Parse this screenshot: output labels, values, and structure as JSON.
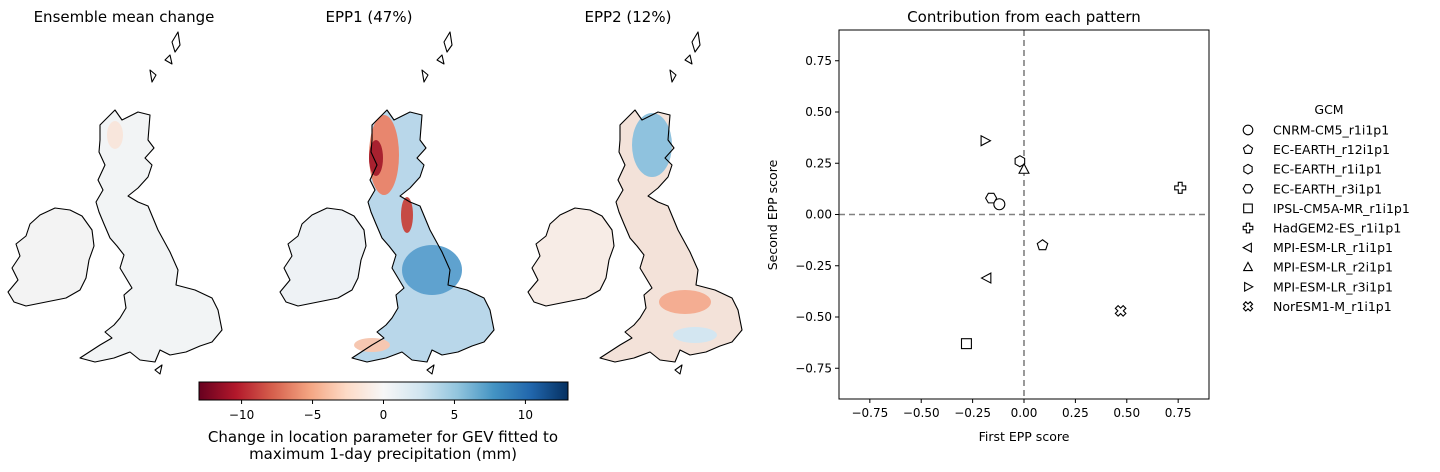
{
  "maps": [
    {
      "id": "mean",
      "title": "Ensemble mean change"
    },
    {
      "id": "epp1",
      "title": "EPP1 (47%)"
    },
    {
      "id": "epp2",
      "title": "EPP2 (12%)"
    }
  ],
  "colorbar": {
    "colormap": "RdBu",
    "min": -13,
    "max": 13,
    "ticks": [
      -10,
      -5,
      0,
      5,
      10
    ],
    "tick_labels": [
      "−10",
      "−5",
      "0",
      "5",
      "10"
    ],
    "label_line1": "Change in location parameter for GEV fitted to",
    "label_line2": "maximum 1-day precipitation (mm)"
  },
  "chart_data": {
    "type": "scatter",
    "title": "Contribution from each pattern",
    "xlabel": "First EPP score",
    "ylabel": "Second EPP score",
    "xlim": [
      -0.9,
      0.9
    ],
    "ylim": [
      -0.9,
      0.9
    ],
    "xticks": [
      -0.75,
      -0.5,
      -0.25,
      0.0,
      0.25,
      0.5,
      0.75
    ],
    "xtick_labels": [
      "−0.75",
      "−0.50",
      "−0.25",
      "0.00",
      "0.25",
      "0.50",
      "0.75"
    ],
    "yticks": [
      -0.75,
      -0.5,
      -0.25,
      0.0,
      0.25,
      0.5,
      0.75
    ],
    "ytick_labels": [
      "−0.75",
      "−0.50",
      "−0.25",
      "0.00",
      "0.25",
      "0.50",
      "0.75"
    ],
    "reference_lines": {
      "x": 0,
      "y": 0,
      "style": "dashed",
      "color": "#808080"
    },
    "legend": {
      "title": "GCM",
      "placement": "right outside"
    },
    "series": [
      {
        "name": "CNRM-CM5_r1i1p1",
        "marker": "circle",
        "x": [
          -0.12
        ],
        "y": [
          0.05
        ]
      },
      {
        "name": "EC-EARTH_r12i1p1",
        "marker": "pentagon",
        "x": [
          0.09
        ],
        "y": [
          -0.15
        ]
      },
      {
        "name": "EC-EARTH_r1i1p1",
        "marker": "hexagon-vertical",
        "x": [
          -0.02
        ],
        "y": [
          0.26
        ]
      },
      {
        "name": "EC-EARTH_r3i1p1",
        "marker": "hexagon-horizontal",
        "x": [
          -0.16
        ],
        "y": [
          0.08
        ]
      },
      {
        "name": "IPSL-CM5A-MR_r1i1p1",
        "marker": "square",
        "x": [
          -0.28
        ],
        "y": [
          -0.63
        ]
      },
      {
        "name": "HadGEM2-ES_r1i1p1",
        "marker": "plus-filled",
        "x": [
          0.76
        ],
        "y": [
          0.13
        ]
      },
      {
        "name": "MPI-ESM-LR_r1i1p1",
        "marker": "triangle-left",
        "x": [
          -0.18
        ],
        "y": [
          -0.31
        ]
      },
      {
        "name": "MPI-ESM-LR_r2i1p1",
        "marker": "triangle-up",
        "x": [
          0.0
        ],
        "y": [
          0.22
        ]
      },
      {
        "name": "MPI-ESM-LR_r3i1p1",
        "marker": "triangle-right",
        "x": [
          -0.19
        ],
        "y": [
          0.36
        ]
      },
      {
        "name": "NorESM1-M_r1i1p1",
        "marker": "x-filled",
        "x": [
          0.47
        ],
        "y": [
          -0.47
        ]
      }
    ]
  }
}
